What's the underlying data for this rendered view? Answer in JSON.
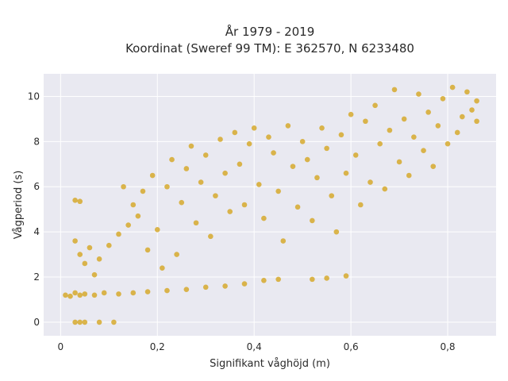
{
  "chart_data": {
    "type": "scatter",
    "title": [
      "År 1979 - 2019",
      "Koordinat (Sweref 99 TM): E 362570, N 6233480"
    ],
    "xlabel": "Signifikant våghöjd (m)",
    "ylabel": "Vågperiod (s)",
    "xlim": [
      -0.035,
      0.9
    ],
    "ylim": [
      -0.6,
      11
    ],
    "x_ticks": [
      0,
      0.2,
      0.4,
      0.6,
      0.8
    ],
    "x_tick_labels": [
      "0",
      "0,2",
      "0,4",
      "0,6",
      "0,8"
    ],
    "y_ticks": [
      0,
      2,
      4,
      6,
      8,
      10
    ],
    "y_tick_labels": [
      "0",
      "2",
      "4",
      "6",
      "8",
      "10"
    ],
    "grid": true,
    "plot_background": "#e9e9f1",
    "grid_color": "#ffffff",
    "marker_color": "#d4a520",
    "marker_opacity": 0.8,
    "series": [
      {
        "values": [
          [
            0.01,
            1.2
          ],
          [
            0.02,
            1.15
          ],
          [
            0.03,
            1.3
          ],
          [
            0.04,
            1.2
          ],
          [
            0.05,
            1.25
          ],
          [
            0.07,
            1.2
          ],
          [
            0.09,
            1.3
          ],
          [
            0.12,
            1.25
          ],
          [
            0.15,
            1.3
          ],
          [
            0.18,
            1.35
          ],
          [
            0.22,
            1.4
          ],
          [
            0.26,
            1.45
          ],
          [
            0.3,
            1.55
          ],
          [
            0.34,
            1.6
          ],
          [
            0.38,
            1.7
          ],
          [
            0.42,
            1.85
          ],
          [
            0.45,
            1.9
          ],
          [
            0.52,
            1.9
          ],
          [
            0.55,
            1.95
          ],
          [
            0.59,
            2.05
          ],
          [
            0.03,
            0.0
          ],
          [
            0.04,
            0.0
          ],
          [
            0.05,
            0.0
          ],
          [
            0.08,
            0.0
          ],
          [
            0.11,
            0.0
          ],
          [
            0.03,
            5.4
          ],
          [
            0.04,
            5.35
          ],
          [
            0.03,
            3.6
          ],
          [
            0.04,
            3.0
          ],
          [
            0.05,
            2.6
          ],
          [
            0.06,
            3.3
          ],
          [
            0.07,
            2.1
          ],
          [
            0.08,
            2.8
          ],
          [
            0.1,
            3.4
          ],
          [
            0.12,
            3.9
          ],
          [
            0.14,
            4.3
          ],
          [
            0.13,
            6.0
          ],
          [
            0.15,
            5.2
          ],
          [
            0.16,
            4.7
          ],
          [
            0.17,
            5.8
          ],
          [
            0.18,
            3.2
          ],
          [
            0.19,
            6.5
          ],
          [
            0.2,
            4.1
          ],
          [
            0.21,
            2.4
          ],
          [
            0.22,
            6.0
          ],
          [
            0.23,
            7.2
          ],
          [
            0.24,
            3.0
          ],
          [
            0.25,
            5.3
          ],
          [
            0.26,
            6.8
          ],
          [
            0.27,
            7.8
          ],
          [
            0.28,
            4.4
          ],
          [
            0.29,
            6.2
          ],
          [
            0.3,
            7.4
          ],
          [
            0.31,
            3.8
          ],
          [
            0.32,
            5.6
          ],
          [
            0.33,
            8.1
          ],
          [
            0.34,
            6.6
          ],
          [
            0.35,
            4.9
          ],
          [
            0.36,
            8.4
          ],
          [
            0.37,
            7.0
          ],
          [
            0.38,
            5.2
          ],
          [
            0.39,
            7.9
          ],
          [
            0.4,
            8.6
          ],
          [
            0.41,
            6.1
          ],
          [
            0.42,
            4.6
          ],
          [
            0.43,
            8.2
          ],
          [
            0.44,
            7.5
          ],
          [
            0.45,
            5.8
          ],
          [
            0.46,
            3.6
          ],
          [
            0.47,
            8.7
          ],
          [
            0.48,
            6.9
          ],
          [
            0.49,
            5.1
          ],
          [
            0.5,
            8.0
          ],
          [
            0.51,
            7.2
          ],
          [
            0.52,
            4.5
          ],
          [
            0.53,
            6.4
          ],
          [
            0.54,
            8.6
          ],
          [
            0.55,
            7.7
          ],
          [
            0.56,
            5.6
          ],
          [
            0.57,
            4.0
          ],
          [
            0.58,
            8.3
          ],
          [
            0.59,
            6.6
          ],
          [
            0.6,
            9.2
          ],
          [
            0.61,
            7.4
          ],
          [
            0.62,
            5.2
          ],
          [
            0.63,
            8.9
          ],
          [
            0.64,
            6.2
          ],
          [
            0.65,
            9.6
          ],
          [
            0.66,
            7.9
          ],
          [
            0.67,
            5.9
          ],
          [
            0.68,
            8.5
          ],
          [
            0.69,
            10.3
          ],
          [
            0.7,
            7.1
          ],
          [
            0.71,
            9.0
          ],
          [
            0.72,
            6.5
          ],
          [
            0.73,
            8.2
          ],
          [
            0.74,
            10.1
          ],
          [
            0.75,
            7.6
          ],
          [
            0.76,
            9.3
          ],
          [
            0.77,
            6.9
          ],
          [
            0.78,
            8.7
          ],
          [
            0.79,
            9.9
          ],
          [
            0.8,
            7.9
          ],
          [
            0.81,
            10.4
          ],
          [
            0.82,
            8.4
          ],
          [
            0.83,
            9.1
          ],
          [
            0.84,
            10.2
          ],
          [
            0.85,
            9.4
          ],
          [
            0.86,
            9.8
          ],
          [
            0.86,
            8.9
          ]
        ]
      }
    ]
  }
}
